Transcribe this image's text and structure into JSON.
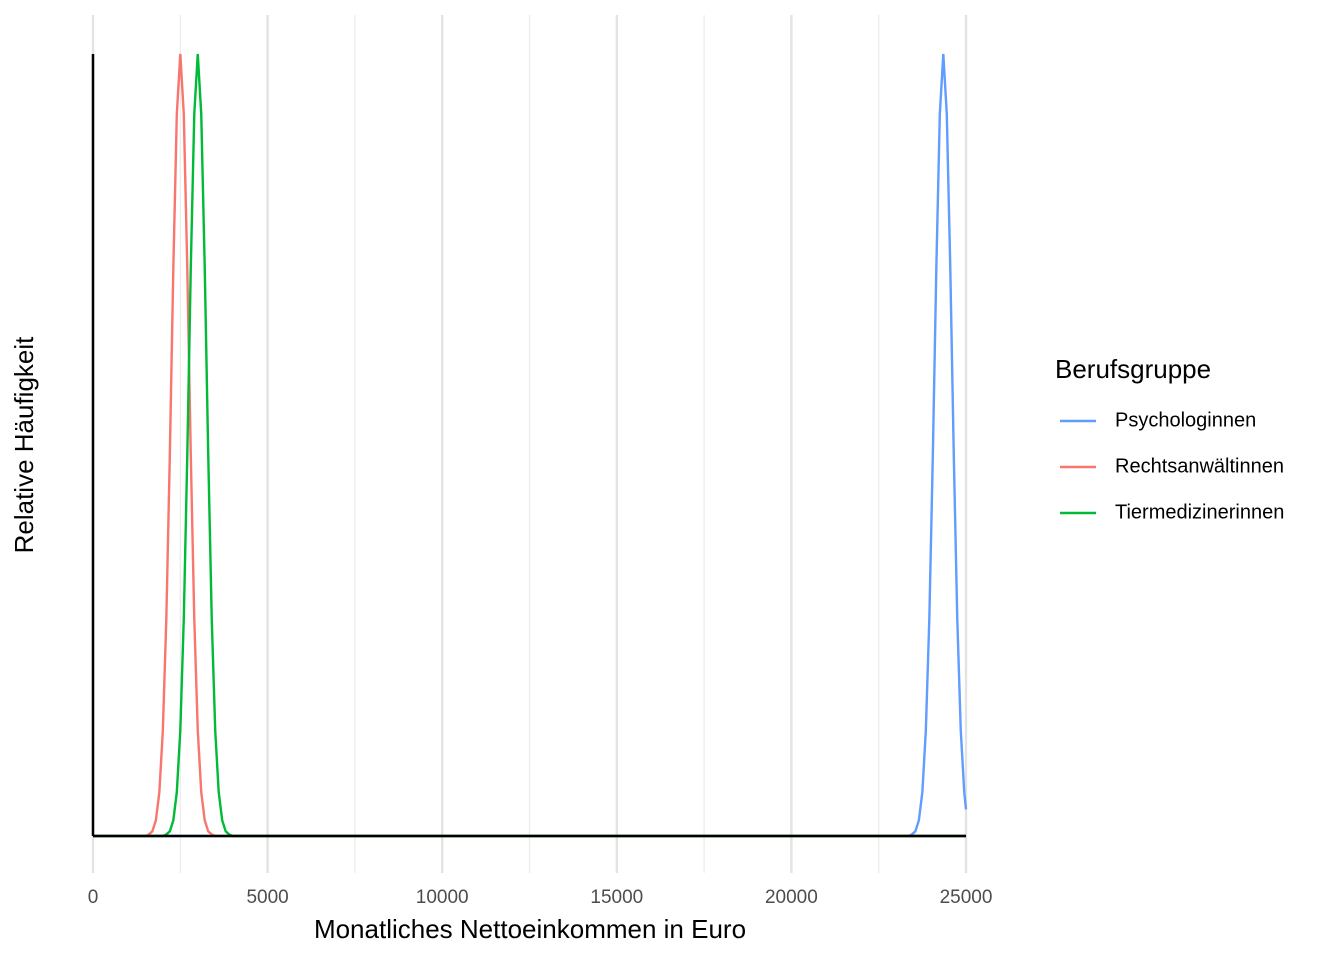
{
  "chart_data": {
    "type": "line",
    "x_label": "Monatliches Nettoeinkommen in Euro",
    "y_label": "Relative Häufigkeit",
    "legend_title": "Berufsgruppe",
    "legend_position": "right",
    "grid": true,
    "xlim": [
      0,
      25000
    ],
    "ylim": [
      0,
      1
    ],
    "xticks": [
      0,
      5000,
      10000,
      15000,
      20000,
      25000
    ],
    "xminor": [
      2500,
      7500,
      12500,
      17500,
      22500
    ],
    "series": [
      {
        "name": "Psychologinnen",
        "color": "#619cff",
        "x": [
          0,
          23350,
          23450,
          23550,
          23650,
          23750,
          23850,
          23950,
          24050,
          24150,
          24250,
          24350,
          24450,
          24550,
          24650,
          24750,
          24850,
          24950,
          25000
        ],
        "values": [
          0,
          0,
          0.002,
          0.006,
          0.02,
          0.056,
          0.135,
          0.278,
          0.487,
          0.726,
          0.923,
          1,
          0.923,
          0.726,
          0.487,
          0.278,
          0.135,
          0.056,
          0.034
        ]
      },
      {
        "name": "Rechtsanwältinnen",
        "color": "#f8766d",
        "x": [
          0,
          1500,
          1600,
          1700,
          1800,
          1900,
          2000,
          2100,
          2200,
          2300,
          2400,
          2500,
          2600,
          2700,
          2800,
          2900,
          3000,
          3100,
          3200,
          3300,
          3400,
          3500,
          25000
        ],
        "values": [
          0,
          0,
          0.002,
          0.006,
          0.02,
          0.056,
          0.135,
          0.278,
          0.487,
          0.726,
          0.923,
          1,
          0.923,
          0.726,
          0.487,
          0.278,
          0.135,
          0.056,
          0.02,
          0.006,
          0.002,
          0,
          0
        ]
      },
      {
        "name": "Tiermedizinerinnen",
        "color": "#00ba38",
        "x": [
          0,
          2000,
          2100,
          2200,
          2300,
          2400,
          2500,
          2600,
          2700,
          2800,
          2900,
          3000,
          3100,
          3200,
          3300,
          3400,
          3500,
          3600,
          3700,
          3800,
          3900,
          4000,
          25000
        ],
        "values": [
          0,
          0,
          0.002,
          0.006,
          0.02,
          0.056,
          0.135,
          0.278,
          0.487,
          0.726,
          0.923,
          1,
          0.923,
          0.726,
          0.487,
          0.278,
          0.135,
          0.056,
          0.02,
          0.006,
          0.002,
          0,
          0
        ]
      }
    ]
  }
}
